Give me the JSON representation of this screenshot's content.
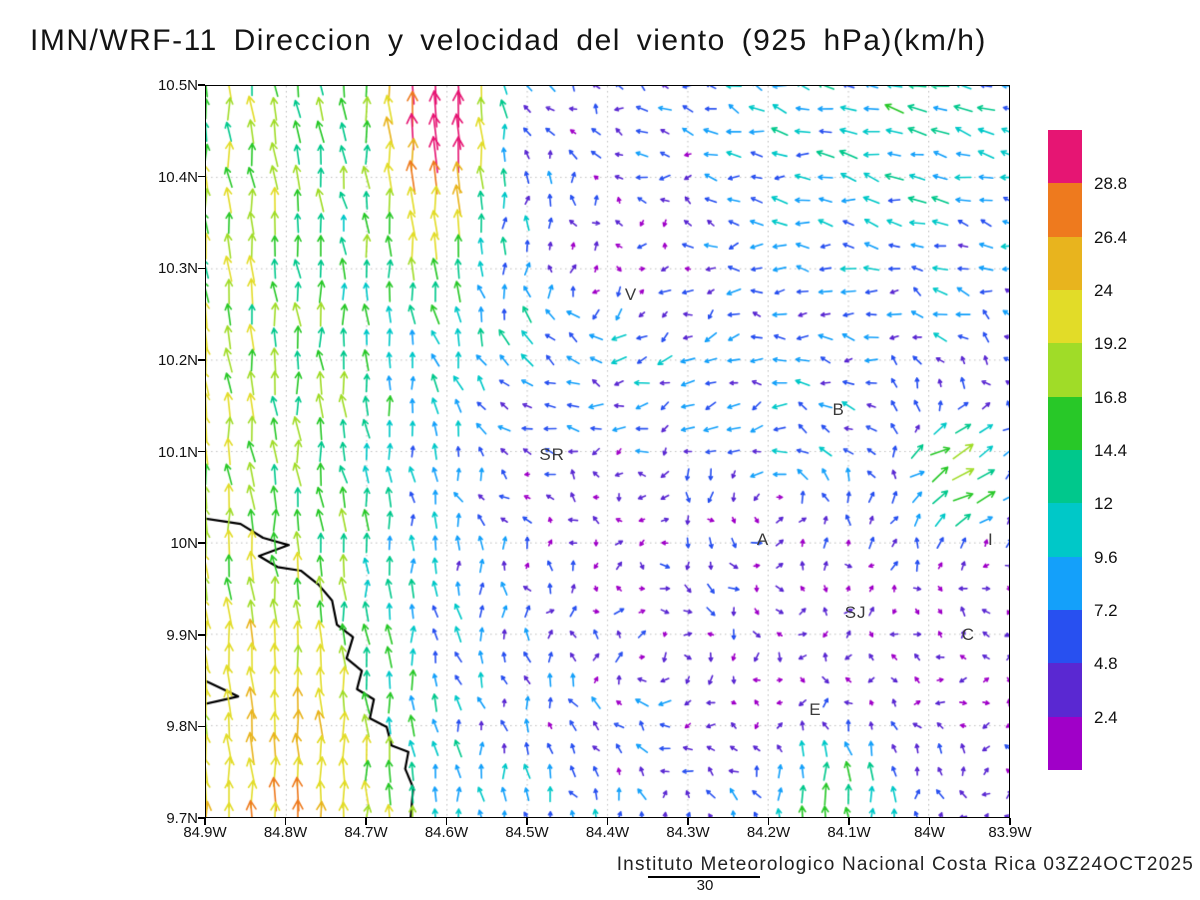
{
  "chart_data": {
    "type": "quiver",
    "title": "IMN/WRF-11 Direccion y velocidad del viento (925 hPa)(km/h)",
    "footer": "Instituto Meteorologico Nacional Costa Rica 03Z24OCT2025",
    "units": "km/h",
    "reference_vector_label": "30",
    "axes": {
      "lat_ticks": [
        "10.5N",
        "10.4N",
        "10.3N",
        "10.2N",
        "10.1N",
        "10N",
        "9.9N",
        "9.8N",
        "9.7N"
      ],
      "lon_ticks": [
        "84.9W",
        "84.8W",
        "84.7W",
        "84.6W",
        "84.5W",
        "84.4W",
        "84.3W",
        "84.2W",
        "84.1W",
        "84W",
        "83.9W"
      ],
      "lat_range": [
        9.7,
        10.5
      ],
      "lon_range_w": [
        84.9,
        83.9
      ],
      "grid": "dotted"
    },
    "colorbar": {
      "position": "right",
      "labels_top_to_bottom": [
        "28.8",
        "26.4",
        "24",
        "19.2",
        "16.8",
        "14.4",
        "12",
        "9.6",
        "7.2",
        "4.8",
        "2.4"
      ],
      "colors_top_to_bottom": [
        "#e61573",
        "#ee7a1e",
        "#e8b41e",
        "#e2dc28",
        "#a0dc28",
        "#28c828",
        "#00c88c",
        "#00c8c8",
        "#14a0fa",
        "#2850f0",
        "#5a28d2",
        "#a000c8"
      ]
    },
    "stations": [
      {
        "label": "V",
        "lat": 10.271,
        "lon": 84.372
      },
      {
        "label": "B",
        "lat": 10.145,
        "lon": 84.114
      },
      {
        "label": "SR",
        "lat": 10.096,
        "lon": 84.47
      },
      {
        "label": "A",
        "lat": 10.003,
        "lon": 84.208
      },
      {
        "label": "I",
        "lat": 10.003,
        "lon": 83.925
      },
      {
        "label": "SJ",
        "lat": 9.924,
        "lon": 84.093
      },
      {
        "label": "C",
        "lat": 9.9,
        "lon": 83.953
      },
      {
        "label": "E",
        "lat": 9.818,
        "lon": 84.143
      }
    ],
    "coastline_norm": [
      [
        [
          0,
          0.592
        ],
        [
          0.043,
          0.599
        ],
        [
          0.071,
          0.618
        ],
        [
          0.103,
          0.628
        ],
        [
          0.066,
          0.643
        ],
        [
          0.089,
          0.658
        ],
        [
          0.118,
          0.663
        ],
        [
          0.14,
          0.682
        ],
        [
          0.157,
          0.704
        ],
        [
          0.163,
          0.737
        ],
        [
          0.183,
          0.754
        ],
        [
          0.175,
          0.783
        ],
        [
          0.194,
          0.8
        ],
        [
          0.188,
          0.825
        ],
        [
          0.209,
          0.839
        ],
        [
          0.204,
          0.865
        ],
        [
          0.225,
          0.877
        ],
        [
          0.231,
          0.902
        ],
        [
          0.252,
          0.911
        ],
        [
          0.248,
          0.934
        ],
        [
          0.258,
          0.96
        ],
        [
          0.255,
          1.0
        ]
      ],
      [
        [
          0,
          0.814
        ],
        [
          0.04,
          0.835
        ],
        [
          0,
          0.845
        ]
      ]
    ],
    "vector_field": {
      "grid_cols": 36,
      "grid_rows": 33,
      "seed": 2025,
      "noise_amp": 3.4,
      "base_u": -1.2,
      "base_v": -0.9,
      "jets": [
        {
          "name": "pacific-southerly-jet",
          "ampU": 0,
          "ampV": -16,
          "cx": 0.02,
          "sx": 0.26,
          "cy": 0.5,
          "sy": 10
        },
        {
          "name": "southwest-coast-boost",
          "ampU": 0,
          "ampV": -8,
          "cx": 0.12,
          "sx": 0.16,
          "cy": 0.95,
          "sy": 0.3
        },
        {
          "name": "north-core-jet",
          "ampU": 0,
          "ampV": -28,
          "cx": 0.29,
          "sx": 0.07,
          "cy": 0.0,
          "sy": 0.22
        },
        {
          "name": "northeast-easterlies",
          "ampU": -9,
          "ampV": -2,
          "cx": 0.88,
          "sx": 0.42,
          "cy": 0.05,
          "sy": 0.3
        },
        {
          "name": "east-valley-streak",
          "ampU": 18,
          "ampV": -6,
          "cx": 0.94,
          "sx": 0.07,
          "cy": 0.52,
          "sy": 0.09
        },
        {
          "name": "southeast-updraft",
          "ampU": 0,
          "ampV": -14,
          "cx": 0.78,
          "sx": 0.09,
          "cy": 0.97,
          "sy": 0.08
        },
        {
          "name": "south-edge-flow",
          "ampU": 2,
          "ampV": -6,
          "cx": 0.45,
          "sx": 0.35,
          "cy": 1.04,
          "sy": 0.1
        }
      ],
      "vortices": [
        {
          "cx": 0.47,
          "cy": 0.3,
          "strength": 5.0,
          "radius": 0.25,
          "dir": 1
        },
        {
          "cx": 0.72,
          "cy": 0.55,
          "strength": 4.5,
          "radius": 0.22,
          "dir": -1
        },
        {
          "cx": 0.55,
          "cy": 0.8,
          "strength": 4.0,
          "radius": 0.2,
          "dir": 1
        }
      ],
      "speed_levels": [
        2.4,
        4.8,
        7.2,
        9.6,
        12,
        14.4,
        16.8,
        19.2,
        24,
        26.4,
        28.8
      ]
    }
  }
}
